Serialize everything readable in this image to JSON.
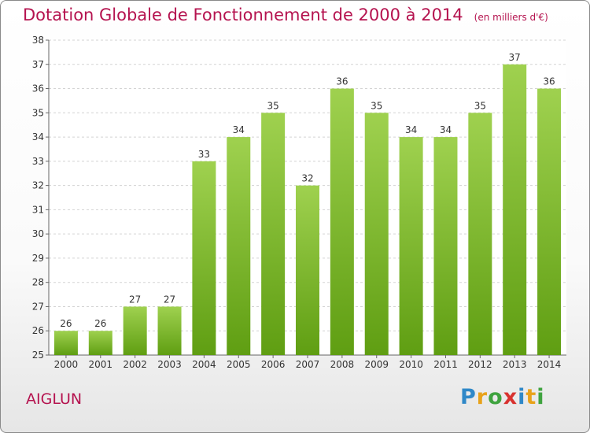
{
  "chart_data": {
    "type": "bar",
    "title": "Dotation Globale de Fonctionnement de 2000 à 2014",
    "unit": "(en milliers d'€)",
    "categories": [
      "2000",
      "2001",
      "2002",
      "2003",
      "2004",
      "2005",
      "2006",
      "2007",
      "2008",
      "2009",
      "2010",
      "2011",
      "2012",
      "2013",
      "2014"
    ],
    "values": [
      26,
      26,
      27,
      27,
      33,
      34,
      35,
      32,
      36,
      35,
      34,
      34,
      35,
      37,
      36
    ],
    "ylim": [
      25,
      38
    ],
    "yticks": [
      25,
      26,
      27,
      28,
      29,
      30,
      31,
      32,
      33,
      34,
      35,
      36,
      37,
      38
    ],
    "grid": true,
    "bar_color": "#7cbb2c"
  },
  "commune": "AIGLUN",
  "logo": {
    "letters": [
      "P",
      "r",
      "o",
      "x",
      "i",
      "t",
      "i"
    ],
    "colors": [
      "#2f88c8",
      "#e8a21a",
      "#3fa33f",
      "#d8322f",
      "#2f88c8",
      "#e8a21a",
      "#3fa33f"
    ]
  }
}
